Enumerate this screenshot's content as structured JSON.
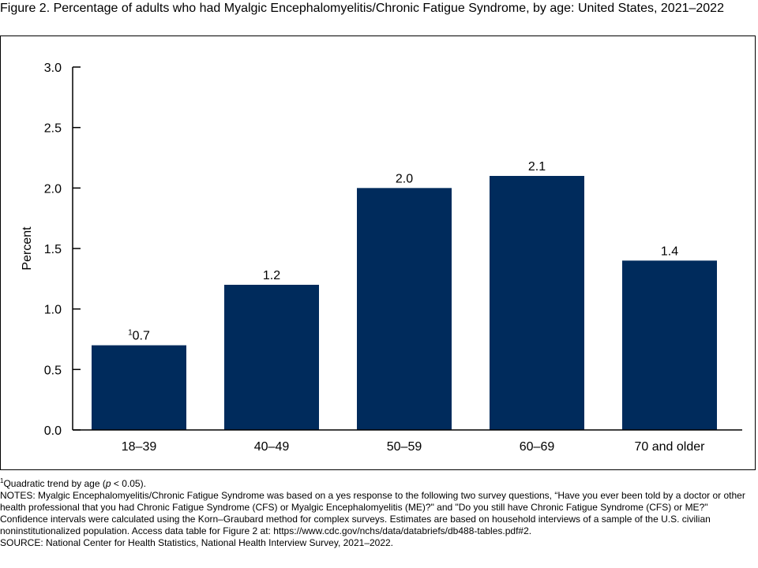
{
  "figure": {
    "title": "Figure 2. Percentage of adults who had Myalgic Encephalomyelitis/Chronic Fatigue Syndrome, by age: United States, 2021–2022"
  },
  "colors": {
    "bar": "#002b5c",
    "axis": "#000000"
  },
  "chart_data": {
    "type": "bar",
    "categories": [
      "18–39",
      "40–49",
      "50–59",
      "60–69",
      "70 and older"
    ],
    "values": [
      0.7,
      1.2,
      2.0,
      2.1,
      1.4
    ],
    "value_labels": [
      "0.7",
      "1.2",
      "2.0",
      "2.1",
      "1.4"
    ],
    "value_label_superscripts": [
      "1",
      "",
      "",
      "",
      ""
    ],
    "ylabel": "Percent",
    "xlabel": "",
    "ylim": [
      0,
      3.0
    ],
    "yticks": [
      0.0,
      0.5,
      1.0,
      1.5,
      2.0,
      2.5,
      3.0
    ],
    "ytick_labels": [
      "0.0",
      "0.5",
      "1.0",
      "1.5",
      "2.0",
      "2.5",
      "3.0"
    ],
    "grid": false,
    "legend": "none"
  },
  "footnotes": {
    "note1_marker": "1",
    "note1_text_before": "Quadratic trend by age (",
    "note1_italic": "p",
    "note1_text_after": " < 0.05).",
    "notes": "NOTES: Myalgic Encephalomyelitis/Chronic Fatigue Syndrome was based on a yes response to the following two survey questions, “Have you ever been told by a doctor or other health professional that you had Chronic Fatigue Syndrome (CFS) or Myalgic Encephalomyelitis (ME)?\" and \"Do you still have Chronic Fatigue Syndrome (CFS) or ME?\" Confidence intervals were calculated using the Korn–Graubard method for complex surveys. Estimates are based on household interviews of a sample of the U.S. civilian noninstitutionalized population. Access data table for Figure 2 at: https://www.cdc.gov/nchs/data/databriefs/db488-tables.pdf#2.",
    "source": "SOURCE: National Center for Health Statistics, National Health Interview Survey, 2021–2022."
  }
}
